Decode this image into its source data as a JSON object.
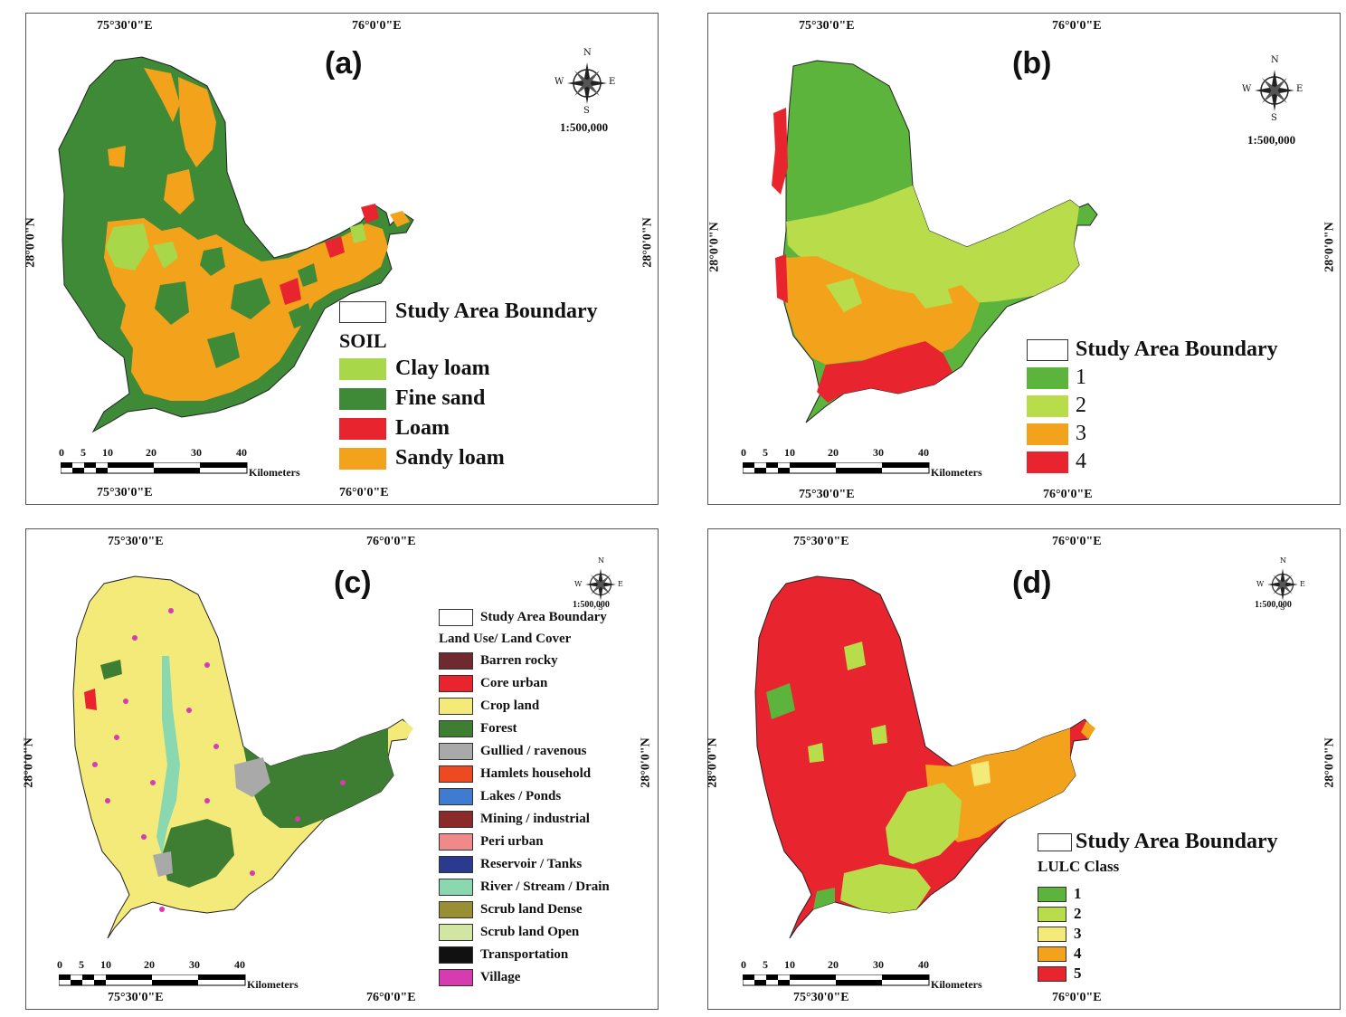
{
  "panels": [
    {
      "id": "a",
      "label": "(a)",
      "top_coord": [
        "75°30'0\"E",
        "76°0'0\"E"
      ],
      "bottom_coord": [
        "75°30'0\"E",
        "76°0'0\"E"
      ],
      "lat_coord": "28°0'0\"N",
      "scale_ratio": "1:500,000",
      "scale_ticks": [
        "0",
        "5",
        "10",
        "20",
        "30",
        "40"
      ],
      "scale_unit": "Kilometers",
      "legend_boundary": "Study Area Boundary",
      "legend_title": "SOIL",
      "legend_items": [
        {
          "label": "Clay loam",
          "color": "#a8d84a"
        },
        {
          "label": "Fine sand",
          "color": "#3e8a37"
        },
        {
          "label": "Loam",
          "color": "#e8242e"
        },
        {
          "label": "Sandy loam",
          "color": "#f3a21c"
        }
      ]
    },
    {
      "id": "b",
      "label": "(b)",
      "top_coord": [
        "75°30'0\"E",
        "76°0'0\"E"
      ],
      "bottom_coord": [
        "75°30'0\"E",
        "76°0'0\"E"
      ],
      "lat_coord": "28°0'0\"N",
      "scale_ratio": "1:500,000",
      "scale_ticks": [
        "0",
        "5",
        "10",
        "20",
        "30",
        "40"
      ],
      "scale_unit": "Kilometers",
      "legend_boundary": "Study Area Boundary",
      "legend_title": "",
      "legend_items": [
        {
          "label": "1",
          "color": "#5cb43c"
        },
        {
          "label": "2",
          "color": "#b8dc4a"
        },
        {
          "label": "3",
          "color": "#f3a21c"
        },
        {
          "label": "4",
          "color": "#e8242e"
        }
      ]
    },
    {
      "id": "c",
      "label": "(c)",
      "top_coord": [
        "75°30'0\"E",
        "76°0'0\"E"
      ],
      "bottom_coord": [
        "75°30'0\"E",
        "76°0'0\"E"
      ],
      "lat_coord": "28°0'0\"N",
      "scale_ratio": "1:500,000",
      "scale_ticks": [
        "0",
        "5",
        "10",
        "20",
        "30",
        "40"
      ],
      "scale_unit": "Kilometers",
      "legend_boundary": "Study Area Boundary",
      "legend_title": "Land Use/ Land Cover",
      "legend_items": [
        {
          "label": "Barren rocky",
          "color": "#6e2a2e"
        },
        {
          "label": "Core urban",
          "color": "#e8242e"
        },
        {
          "label": "Crop land",
          "color": "#f4ea7a"
        },
        {
          "label": "Forest",
          "color": "#3e7e32"
        },
        {
          "label": "Gullied / ravenous",
          "color": "#a9a9a9"
        },
        {
          "label": "Hamlets  household",
          "color": "#ee4a22"
        },
        {
          "label": "Lakes / Ponds",
          "color": "#3f7bd0"
        },
        {
          "label": "Mining / industrial",
          "color": "#8c2a2a"
        },
        {
          "label": "Peri urban",
          "color": "#f08a8a"
        },
        {
          "label": "Reservoir / Tanks",
          "color": "#2a3a8e"
        },
        {
          "label": "River / Stream / Drain",
          "color": "#8ad8b0"
        },
        {
          "label": "Scrub land Dense",
          "color": "#9a8e34"
        },
        {
          "label": "Scrub land Open",
          "color": "#d2e6a4"
        },
        {
          "label": "Transportation",
          "color": "#111111"
        },
        {
          "label": "Village",
          "color": "#d63cb0"
        }
      ]
    },
    {
      "id": "d",
      "label": "(d)",
      "top_coord": [
        "75°30'0\"E",
        "76°0'0\"E"
      ],
      "bottom_coord": [
        "75°30'0\"E",
        "76°0'0\"E"
      ],
      "lat_coord": "28°0'0\"N",
      "scale_ratio": "1:500,000",
      "scale_ticks": [
        "0",
        "5",
        "10",
        "20",
        "30",
        "40"
      ],
      "scale_unit": "Kilometers",
      "legend_boundary": "Study Area Boundary",
      "legend_title": "LULC Class",
      "legend_items": [
        {
          "label": "1",
          "color": "#5cb43c"
        },
        {
          "label": "2",
          "color": "#b8dc4a"
        },
        {
          "label": "3",
          "color": "#f4ea7a"
        },
        {
          "label": "4",
          "color": "#f3a21c"
        },
        {
          "label": "5",
          "color": "#e8242e"
        }
      ]
    }
  ],
  "compass_letters": {
    "n": "N",
    "s": "S",
    "e": "E",
    "w": "W"
  }
}
